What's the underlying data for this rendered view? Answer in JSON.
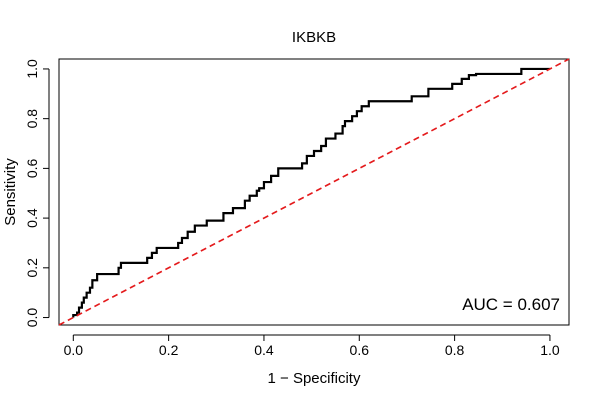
{
  "chart_data": {
    "type": "line",
    "title": "IKBKB",
    "xlabel": "1 − Specificity",
    "ylabel": "Sensitivity",
    "xlim": [
      -0.03,
      1.04
    ],
    "ylim": [
      -0.03,
      1.04
    ],
    "grid": false,
    "legend": "none",
    "x_ticks": [
      0.0,
      0.2,
      0.4,
      0.6,
      0.8,
      1.0
    ],
    "x_tick_labels": [
      "0.0",
      "0.2",
      "0.4",
      "0.6",
      "0.8",
      "1.0"
    ],
    "y_ticks": [
      0.0,
      0.2,
      0.4,
      0.6,
      0.8,
      1.0
    ],
    "y_tick_labels": [
      "0.0",
      "0.2",
      "0.4",
      "0.6",
      "0.8",
      "1.0"
    ],
    "annotation": "AUC = 0.607",
    "series": [
      {
        "style": "solid",
        "color": "#000000",
        "x": [
          0.0,
          0.0,
          0.008,
          0.008,
          0.012,
          0.012,
          0.018,
          0.018,
          0.022,
          0.022,
          0.028,
          0.028,
          0.035,
          0.035,
          0.04,
          0.04,
          0.05,
          0.05,
          0.095,
          0.095,
          0.1,
          0.1,
          0.155,
          0.155,
          0.165,
          0.165,
          0.175,
          0.175,
          0.22,
          0.22,
          0.228,
          0.228,
          0.24,
          0.24,
          0.255,
          0.255,
          0.28,
          0.28,
          0.315,
          0.315,
          0.335,
          0.335,
          0.36,
          0.36,
          0.37,
          0.37,
          0.385,
          0.385,
          0.39,
          0.39,
          0.4,
          0.4,
          0.415,
          0.415,
          0.43,
          0.43,
          0.48,
          0.48,
          0.49,
          0.49,
          0.505,
          0.505,
          0.52,
          0.52,
          0.53,
          0.53,
          0.55,
          0.55,
          0.565,
          0.565,
          0.57,
          0.57,
          0.585,
          0.585,
          0.595,
          0.595,
          0.605,
          0.605,
          0.612,
          0.612,
          0.62,
          0.62,
          0.71,
          0.71,
          0.745,
          0.745,
          0.795,
          0.795,
          0.815,
          0.815,
          0.83,
          0.83,
          0.845,
          0.845,
          0.94,
          0.94,
          1.0
        ],
        "y": [
          0.0,
          0.01,
          0.01,
          0.02,
          0.02,
          0.04,
          0.04,
          0.06,
          0.06,
          0.08,
          0.08,
          0.1,
          0.1,
          0.12,
          0.12,
          0.15,
          0.15,
          0.175,
          0.175,
          0.2,
          0.2,
          0.22,
          0.22,
          0.24,
          0.24,
          0.26,
          0.26,
          0.28,
          0.28,
          0.3,
          0.3,
          0.32,
          0.32,
          0.345,
          0.345,
          0.37,
          0.37,
          0.39,
          0.39,
          0.42,
          0.42,
          0.44,
          0.44,
          0.47,
          0.47,
          0.49,
          0.49,
          0.51,
          0.51,
          0.52,
          0.52,
          0.545,
          0.545,
          0.57,
          0.57,
          0.6,
          0.6,
          0.62,
          0.62,
          0.65,
          0.65,
          0.67,
          0.67,
          0.69,
          0.69,
          0.72,
          0.72,
          0.74,
          0.74,
          0.77,
          0.77,
          0.79,
          0.79,
          0.81,
          0.81,
          0.83,
          0.83,
          0.85,
          0.85,
          0.85,
          0.85,
          0.87,
          0.87,
          0.89,
          0.89,
          0.92,
          0.92,
          0.94,
          0.94,
          0.96,
          0.96,
          0.975,
          0.975,
          0.98,
          0.98,
          1.0,
          1.0
        ]
      },
      {
        "style": "dashed",
        "color": "#e41a1c",
        "x": [
          -0.03,
          1.04
        ],
        "y": [
          -0.03,
          1.04
        ]
      }
    ]
  }
}
